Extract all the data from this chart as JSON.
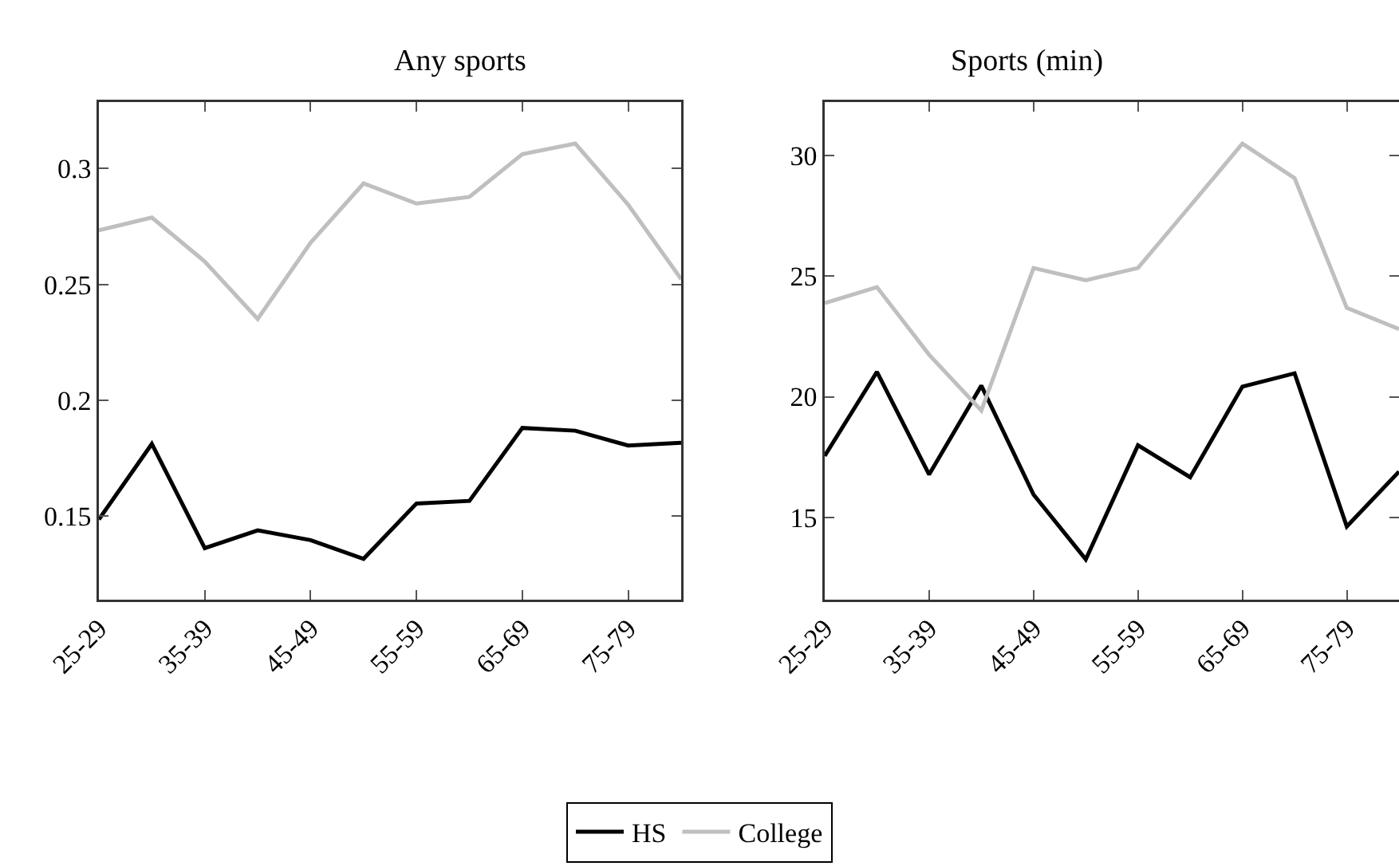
{
  "chart_data": [
    {
      "type": "line",
      "title": "Any sports",
      "categories": [
        "25-29",
        null,
        "35-39",
        null,
        "45-49",
        null,
        "55-59",
        null,
        "65-69",
        null,
        "75-79",
        null
      ],
      "series": [
        {
          "name": "HS",
          "color": "#000000",
          "values": [
            0.1486,
            0.1812,
            0.1362,
            0.1439,
            0.1397,
            0.1316,
            0.1555,
            0.1566,
            0.1881,
            0.1869,
            0.1805,
            0.1817
          ]
        },
        {
          "name": "College",
          "color": "#bfbfbf",
          "values": [
            0.2734,
            0.2789,
            0.2599,
            0.2351,
            0.268,
            0.2936,
            0.2849,
            0.2878,
            0.3062,
            0.3108,
            0.2844,
            0.2523
          ]
        }
      ],
      "ylim": [
        0.114,
        0.3287
      ],
      "yticks": [
        0.15,
        0.2,
        0.25,
        0.3
      ],
      "grid": false,
      "legend": "bottom",
      "marker": "none",
      "line_style": "solid"
    },
    {
      "type": "line",
      "title": "Sports (min)",
      "categories": [
        "25-29",
        null,
        "35-39",
        null,
        "45-49",
        null,
        "55-59",
        null,
        "65-69",
        null,
        "75-79",
        null
      ],
      "series": [
        {
          "color": "#000000",
          "values": [
            17.55,
            21.03,
            16.78,
            20.46,
            15.95,
            13.27,
            17.99,
            16.67,
            20.42,
            20.97,
            14.63,
            16.9
          ]
        },
        {
          "color": "#bfbfbf",
          "values": [
            23.88,
            24.54,
            21.74,
            19.43,
            25.33,
            24.82,
            25.33,
            27.9,
            30.48,
            29.05,
            23.68,
            22.8
          ]
        }
      ],
      "ylim": [
        11.6,
        32.2
      ],
      "yticks": [
        15,
        20,
        25,
        30
      ],
      "grid": false,
      "marker": "none",
      "line_style": "solid"
    }
  ]
}
